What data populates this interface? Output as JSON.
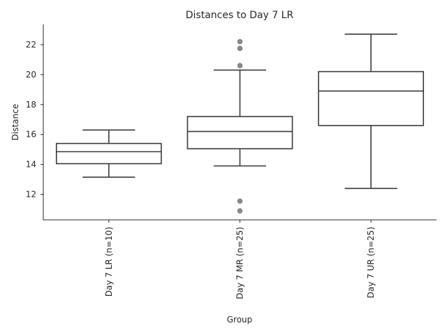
{
  "chart_data": {
    "type": "box",
    "title": "Distances to Day 7 LR",
    "xlabel": "Group",
    "ylabel": "Distance",
    "ylim": [
      10.3,
      23.35
    ],
    "yticks": [
      12,
      14,
      16,
      18,
      20,
      22
    ],
    "grid": false,
    "categories": [
      "Day 7 LR (n=10)",
      "Day 7 MR (n=25)",
      "Day 7 UR (n=25)"
    ],
    "boxes": [
      {
        "whislo": 13.15,
        "q1": 14.05,
        "med": 14.85,
        "q3": 15.4,
        "whishi": 16.3,
        "fliers": []
      },
      {
        "whislo": 13.9,
        "q1": 15.05,
        "med": 16.2,
        "q3": 17.2,
        "whishi": 20.3,
        "fliers": [
          22.2,
          21.75,
          20.6,
          11.55,
          10.9
        ]
      },
      {
        "whislo": 12.4,
        "q1": 16.6,
        "med": 18.9,
        "q3": 20.2,
        "whishi": 22.7,
        "fliers": []
      }
    ]
  }
}
